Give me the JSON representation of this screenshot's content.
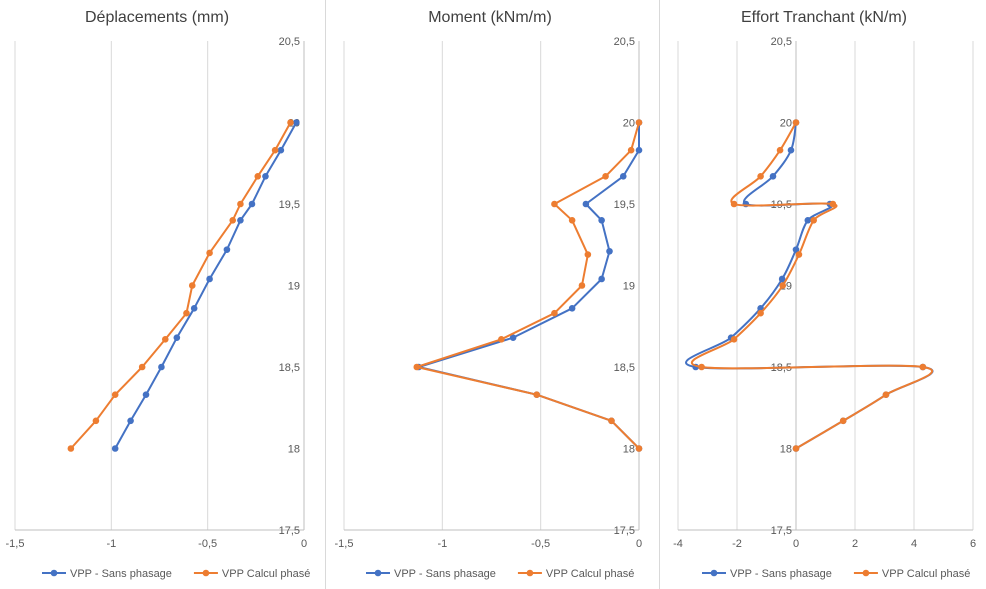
{
  "colors": {
    "series1": "#4472C4",
    "series2": "#ED7D31",
    "grid": "#D9D9D9",
    "axis": "#BFBFBF",
    "text": "#595959",
    "title": "#404040"
  },
  "chart_data": [
    {
      "type": "line",
      "title": "Déplacements (mm)",
      "xlim": [
        -1.5,
        0
      ],
      "ylim": [
        17.5,
        20.5
      ],
      "xticks": [
        -1.5,
        -1,
        -0.5,
        0
      ],
      "xtick_labels": [
        "-1,5",
        "-1",
        "-0,5",
        "0"
      ],
      "yticks": [
        17.5,
        18,
        18.5,
        19,
        19.5,
        20,
        20.5
      ],
      "ytick_labels": [
        "17,5",
        "18",
        "18,5",
        "19",
        "19,5",
        "20",
        "20,5"
      ],
      "grid": "vertical",
      "legend": "bottom",
      "series": [
        {
          "name": "VPP - Sans phasage",
          "smooth": false,
          "points": [
            [
              -0.04,
              20
            ],
            [
              -0.12,
              19.83
            ],
            [
              -0.2,
              19.67
            ],
            [
              -0.27,
              19.5
            ],
            [
              -0.33,
              19.4
            ],
            [
              -0.4,
              19.22
            ],
            [
              -0.49,
              19.04
            ],
            [
              -0.57,
              18.86
            ],
            [
              -0.66,
              18.68
            ],
            [
              -0.74,
              18.5
            ],
            [
              -0.82,
              18.33
            ],
            [
              -0.9,
              18.17
            ],
            [
              -0.98,
              18
            ]
          ]
        },
        {
          "name": "VPP Calcul phasé",
          "smooth": false,
          "points": [
            [
              -0.07,
              20
            ],
            [
              -0.15,
              19.83
            ],
            [
              -0.24,
              19.67
            ],
            [
              -0.33,
              19.5
            ],
            [
              -0.37,
              19.4
            ],
            [
              -0.49,
              19.2
            ],
            [
              -0.58,
              19
            ],
            [
              -0.61,
              18.83
            ],
            [
              -0.72,
              18.67
            ],
            [
              -0.84,
              18.5
            ],
            [
              -0.98,
              18.33
            ],
            [
              -1.08,
              18.17
            ],
            [
              -1.21,
              18
            ]
          ]
        }
      ]
    },
    {
      "type": "line",
      "title": "Moment (kNm/m)",
      "xlim": [
        -1.5,
        0
      ],
      "ylim": [
        17.5,
        20.5
      ],
      "xticks": [
        -1.5,
        -1,
        -0.5,
        0
      ],
      "xtick_labels": [
        "-1,5",
        "-1",
        "-0,5",
        "0"
      ],
      "yticks": [
        17.5,
        18,
        18.5,
        19,
        19.5,
        20,
        20.5
      ],
      "ytick_labels": [
        "17,5",
        "18",
        "18,5",
        "19",
        "19,5",
        "20",
        "20,5"
      ],
      "grid": "vertical",
      "legend": "bottom",
      "series": [
        {
          "name": "VPP - Sans phasage",
          "smooth": false,
          "points": [
            [
              0,
              20
            ],
            [
              0,
              19.83
            ],
            [
              -0.08,
              19.67
            ],
            [
              -0.27,
              19.5
            ],
            [
              -0.19,
              19.4
            ],
            [
              -0.15,
              19.21
            ],
            [
              -0.19,
              19.04
            ],
            [
              -0.34,
              18.86
            ],
            [
              -0.64,
              18.68
            ],
            [
              -1.12,
              18.5
            ],
            [
              -0.52,
              18.33
            ],
            [
              -0.14,
              18.17
            ],
            [
              0,
              18
            ]
          ]
        },
        {
          "name": "VPP Calcul phasé",
          "smooth": false,
          "points": [
            [
              0,
              20
            ],
            [
              -0.04,
              19.83
            ],
            [
              -0.17,
              19.67
            ],
            [
              -0.43,
              19.5
            ],
            [
              -0.34,
              19.4
            ],
            [
              -0.26,
              19.19
            ],
            [
              -0.29,
              19
            ],
            [
              -0.43,
              18.83
            ],
            [
              -0.7,
              18.67
            ],
            [
              -1.13,
              18.5
            ],
            [
              -0.52,
              18.33
            ],
            [
              -0.14,
              18.17
            ],
            [
              0,
              18
            ]
          ]
        }
      ]
    },
    {
      "type": "line",
      "title": "Effort Tranchant (kN/m)",
      "xlim": [
        -4,
        6
      ],
      "ylim": [
        17.5,
        20.5
      ],
      "xticks": [
        -4,
        -2,
        0,
        2,
        4,
        6
      ],
      "xtick_labels": [
        "-4",
        "-2",
        "0",
        "2",
        "4",
        "6"
      ],
      "yticks": [
        17.5,
        18,
        18.5,
        19,
        19.5,
        20,
        20.5
      ],
      "ytick_labels": [
        "17,5",
        "18",
        "18,5",
        "19",
        "19,5",
        "20",
        "20,5"
      ],
      "grid": "vertical",
      "legend": "bottom",
      "series": [
        {
          "name": "VPP - Sans phasage",
          "smooth": true,
          "points": [
            [
              0,
              20
            ],
            [
              -0.17,
              19.83
            ],
            [
              -0.78,
              19.67
            ],
            [
              -1.7,
              19.5
            ],
            [
              1.15,
              19.5
            ],
            [
              0.4,
              19.4
            ],
            [
              0,
              19.22
            ],
            [
              -0.47,
              19.04
            ],
            [
              -1.2,
              18.86
            ],
            [
              -2.2,
              18.68
            ],
            [
              -3.4,
              18.5
            ],
            [
              4.3,
              18.5
            ],
            [
              3.05,
              18.33
            ],
            [
              1.6,
              18.17
            ],
            [
              0,
              18
            ]
          ]
        },
        {
          "name": "VPP Calcul phasé",
          "smooth": true,
          "points": [
            [
              0,
              20
            ],
            [
              -0.54,
              19.83
            ],
            [
              -1.2,
              19.67
            ],
            [
              -2.1,
              19.5
            ],
            [
              1.25,
              19.5
            ],
            [
              0.6,
              19.4
            ],
            [
              0.1,
              19.19
            ],
            [
              -0.45,
              19
            ],
            [
              -1.2,
              18.83
            ],
            [
              -2.1,
              18.67
            ],
            [
              -3.2,
              18.5
            ],
            [
              4.3,
              18.5
            ],
            [
              3.05,
              18.33
            ],
            [
              1.6,
              18.17
            ],
            [
              0,
              18
            ]
          ]
        }
      ]
    }
  ]
}
